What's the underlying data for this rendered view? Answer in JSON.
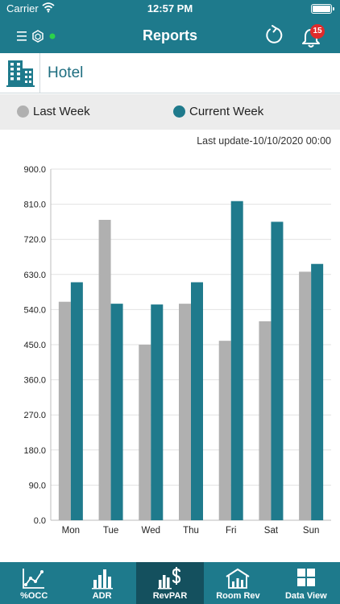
{
  "status_bar": {
    "carrier": "Carrier",
    "time": "12:57 PM"
  },
  "nav": {
    "title": "Reports",
    "notification_count": "15"
  },
  "hotel": {
    "name": "Hotel",
    "icon": "building-icon"
  },
  "legend": {
    "last_week": {
      "label": "Last Week",
      "color": "#b0b0b0"
    },
    "current_week": {
      "label": "Current Week",
      "color": "#1f7a8c"
    }
  },
  "last_update": "Last update-10/10/2020 00:00",
  "chart_data": {
    "type": "bar",
    "categories": [
      "Mon",
      "Tue",
      "Wed",
      "Thu",
      "Fri",
      "Sat",
      "Sun"
    ],
    "series": [
      {
        "name": "Last Week",
        "color": "#b0b0b0",
        "values": [
          560,
          770,
          450,
          555,
          460,
          510,
          637
        ]
      },
      {
        "name": "Current Week",
        "color": "#1f7a8c",
        "values": [
          610,
          555,
          553,
          610,
          818,
          765,
          657
        ]
      }
    ],
    "ylim": [
      0,
      900
    ],
    "yticks": [
      "0.0",
      "90.0",
      "180.0",
      "270.0",
      "360.0",
      "450.0",
      "540.0",
      "630.0",
      "720.0",
      "810.0",
      "900.0"
    ],
    "grid": true,
    "title": "",
    "xlabel": "",
    "ylabel": ""
  },
  "tabs": [
    {
      "label": "%OCC",
      "icon": "line-chart-icon",
      "active": false
    },
    {
      "label": "ADR",
      "icon": "bar-chart-icon",
      "active": false
    },
    {
      "label": "RevPAR",
      "icon": "dollar-bar-chart-icon",
      "active": true
    },
    {
      "label": "Room Rev",
      "icon": "house-chart-icon",
      "active": false
    },
    {
      "label": "Data View",
      "icon": "grid-icon",
      "active": false
    }
  ]
}
